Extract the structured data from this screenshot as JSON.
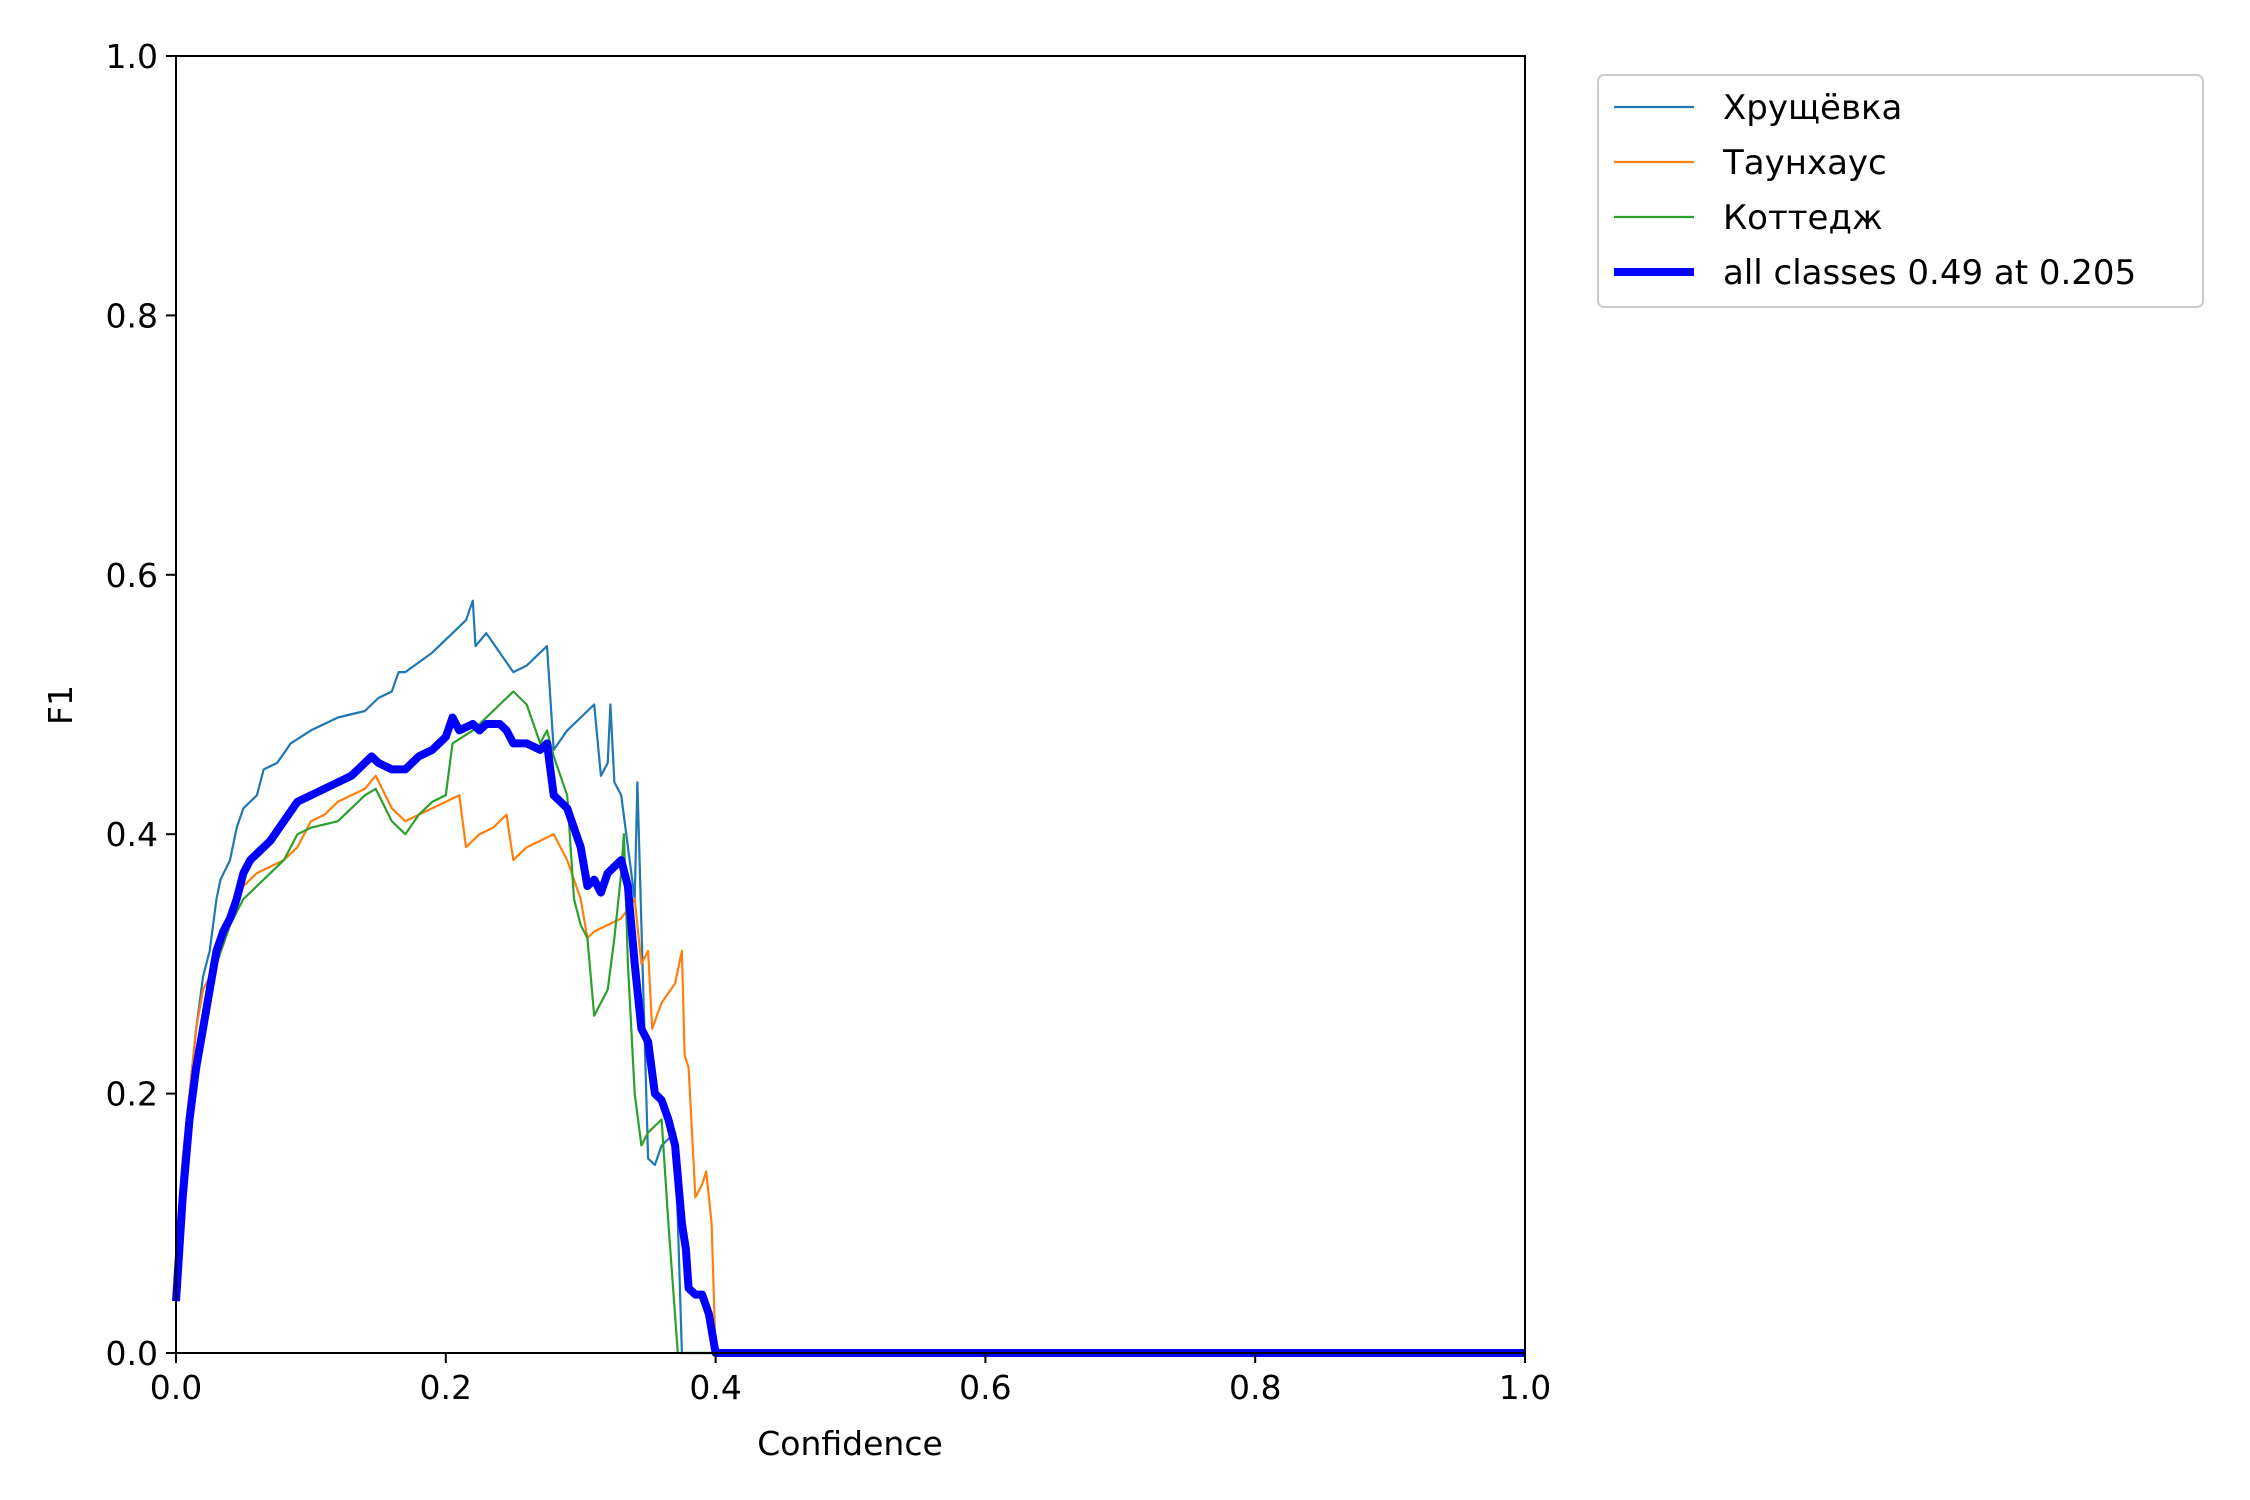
{
  "chart_data": {
    "type": "line",
    "title": "",
    "xlabel": "Confidence",
    "ylabel": "F1",
    "xlim": [
      0.0,
      1.0
    ],
    "ylim": [
      0.0,
      1.0
    ],
    "xticks": [
      "0.0",
      "0.2",
      "0.4",
      "0.6",
      "0.8",
      "1.0"
    ],
    "yticks": [
      "0.0",
      "0.2",
      "0.4",
      "0.6",
      "0.8",
      "1.0"
    ],
    "grid": false,
    "legend_position": "outside-top-right",
    "series": [
      {
        "name": "Хрущёвка",
        "color": "#1f77b4",
        "points": [
          [
            0.0,
            0.08
          ],
          [
            0.005,
            0.15
          ],
          [
            0.01,
            0.2
          ],
          [
            0.015,
            0.25
          ],
          [
            0.02,
            0.29
          ],
          [
            0.025,
            0.31
          ],
          [
            0.03,
            0.35
          ],
          [
            0.033,
            0.365
          ],
          [
            0.04,
            0.38
          ],
          [
            0.045,
            0.405
          ],
          [
            0.05,
            0.42
          ],
          [
            0.06,
            0.43
          ],
          [
            0.065,
            0.45
          ],
          [
            0.075,
            0.455
          ],
          [
            0.085,
            0.47
          ],
          [
            0.1,
            0.48
          ],
          [
            0.12,
            0.49
          ],
          [
            0.14,
            0.495
          ],
          [
            0.15,
            0.505
          ],
          [
            0.16,
            0.51
          ],
          [
            0.165,
            0.525
          ],
          [
            0.17,
            0.525
          ],
          [
            0.19,
            0.54
          ],
          [
            0.2,
            0.55
          ],
          [
            0.215,
            0.565
          ],
          [
            0.22,
            0.58
          ],
          [
            0.222,
            0.545
          ],
          [
            0.23,
            0.555
          ],
          [
            0.25,
            0.525
          ],
          [
            0.26,
            0.53
          ],
          [
            0.275,
            0.545
          ],
          [
            0.28,
            0.465
          ],
          [
            0.29,
            0.48
          ],
          [
            0.3,
            0.49
          ],
          [
            0.31,
            0.5
          ],
          [
            0.315,
            0.445
          ],
          [
            0.32,
            0.455
          ],
          [
            0.322,
            0.5
          ],
          [
            0.325,
            0.44
          ],
          [
            0.33,
            0.43
          ],
          [
            0.34,
            0.35
          ],
          [
            0.342,
            0.44
          ],
          [
            0.345,
            0.33
          ],
          [
            0.35,
            0.15
          ],
          [
            0.355,
            0.145
          ],
          [
            0.36,
            0.16
          ],
          [
            0.365,
            0.165
          ],
          [
            0.37,
            0.17
          ],
          [
            0.375,
            0.0
          ],
          [
            1.0,
            0.0
          ]
        ]
      },
      {
        "name": "Таунхаус",
        "color": "#ff7f0e",
        "points": [
          [
            0.0,
            0.05
          ],
          [
            0.005,
            0.15
          ],
          [
            0.01,
            0.2
          ],
          [
            0.015,
            0.25
          ],
          [
            0.02,
            0.28
          ],
          [
            0.03,
            0.3
          ],
          [
            0.04,
            0.33
          ],
          [
            0.05,
            0.36
          ],
          [
            0.06,
            0.37
          ],
          [
            0.08,
            0.38
          ],
          [
            0.09,
            0.39
          ],
          [
            0.1,
            0.41
          ],
          [
            0.11,
            0.415
          ],
          [
            0.12,
            0.425
          ],
          [
            0.14,
            0.435
          ],
          [
            0.148,
            0.445
          ],
          [
            0.16,
            0.42
          ],
          [
            0.17,
            0.41
          ],
          [
            0.19,
            0.42
          ],
          [
            0.2,
            0.425
          ],
          [
            0.21,
            0.43
          ],
          [
            0.215,
            0.39
          ],
          [
            0.225,
            0.4
          ],
          [
            0.235,
            0.405
          ],
          [
            0.245,
            0.415
          ],
          [
            0.25,
            0.38
          ],
          [
            0.26,
            0.39
          ],
          [
            0.27,
            0.395
          ],
          [
            0.28,
            0.4
          ],
          [
            0.29,
            0.38
          ],
          [
            0.3,
            0.35
          ],
          [
            0.305,
            0.32
          ],
          [
            0.31,
            0.325
          ],
          [
            0.32,
            0.33
          ],
          [
            0.33,
            0.335
          ],
          [
            0.34,
            0.35
          ],
          [
            0.345,
            0.3
          ],
          [
            0.35,
            0.31
          ],
          [
            0.353,
            0.25
          ],
          [
            0.36,
            0.27
          ],
          [
            0.37,
            0.285
          ],
          [
            0.375,
            0.31
          ],
          [
            0.377,
            0.23
          ],
          [
            0.38,
            0.22
          ],
          [
            0.385,
            0.12
          ],
          [
            0.39,
            0.13
          ],
          [
            0.393,
            0.14
          ],
          [
            0.397,
            0.1
          ],
          [
            0.4,
            0.0
          ],
          [
            1.0,
            0.0
          ]
        ]
      },
      {
        "name": "Коттедж",
        "color": "#2ca02c",
        "points": [
          [
            0.0,
            0.05
          ],
          [
            0.005,
            0.14
          ],
          [
            0.01,
            0.19
          ],
          [
            0.015,
            0.22
          ],
          [
            0.02,
            0.26
          ],
          [
            0.025,
            0.28
          ],
          [
            0.03,
            0.3
          ],
          [
            0.04,
            0.33
          ],
          [
            0.05,
            0.35
          ],
          [
            0.06,
            0.36
          ],
          [
            0.07,
            0.37
          ],
          [
            0.08,
            0.38
          ],
          [
            0.09,
            0.4
          ],
          [
            0.1,
            0.405
          ],
          [
            0.12,
            0.41
          ],
          [
            0.14,
            0.43
          ],
          [
            0.148,
            0.435
          ],
          [
            0.16,
            0.41
          ],
          [
            0.17,
            0.4
          ],
          [
            0.18,
            0.415
          ],
          [
            0.19,
            0.425
          ],
          [
            0.2,
            0.43
          ],
          [
            0.205,
            0.47
          ],
          [
            0.22,
            0.48
          ],
          [
            0.24,
            0.5
          ],
          [
            0.25,
            0.51
          ],
          [
            0.26,
            0.5
          ],
          [
            0.27,
            0.47
          ],
          [
            0.275,
            0.48
          ],
          [
            0.28,
            0.46
          ],
          [
            0.29,
            0.43
          ],
          [
            0.295,
            0.35
          ],
          [
            0.3,
            0.33
          ],
          [
            0.305,
            0.32
          ],
          [
            0.31,
            0.26
          ],
          [
            0.315,
            0.27
          ],
          [
            0.32,
            0.28
          ],
          [
            0.325,
            0.32
          ],
          [
            0.33,
            0.37
          ],
          [
            0.332,
            0.4
          ],
          [
            0.335,
            0.3
          ],
          [
            0.34,
            0.2
          ],
          [
            0.345,
            0.16
          ],
          [
            0.35,
            0.17
          ],
          [
            0.36,
            0.18
          ],
          [
            0.365,
            0.1
          ],
          [
            0.372,
            0.0
          ],
          [
            1.0,
            0.0
          ]
        ]
      },
      {
        "name": "all classes 0.49 at 0.205",
        "color": "#0000ff",
        "bold": true,
        "points": [
          [
            0.0,
            0.04
          ],
          [
            0.005,
            0.12
          ],
          [
            0.01,
            0.18
          ],
          [
            0.015,
            0.22
          ],
          [
            0.02,
            0.25
          ],
          [
            0.025,
            0.28
          ],
          [
            0.03,
            0.31
          ],
          [
            0.035,
            0.325
          ],
          [
            0.04,
            0.335
          ],
          [
            0.045,
            0.35
          ],
          [
            0.05,
            0.37
          ],
          [
            0.055,
            0.38
          ],
          [
            0.06,
            0.385
          ],
          [
            0.07,
            0.395
          ],
          [
            0.08,
            0.41
          ],
          [
            0.09,
            0.425
          ],
          [
            0.1,
            0.43
          ],
          [
            0.11,
            0.435
          ],
          [
            0.12,
            0.44
          ],
          [
            0.13,
            0.445
          ],
          [
            0.14,
            0.455
          ],
          [
            0.145,
            0.46
          ],
          [
            0.15,
            0.455
          ],
          [
            0.16,
            0.45
          ],
          [
            0.17,
            0.45
          ],
          [
            0.18,
            0.46
          ],
          [
            0.19,
            0.465
          ],
          [
            0.2,
            0.475
          ],
          [
            0.205,
            0.49
          ],
          [
            0.21,
            0.48
          ],
          [
            0.22,
            0.485
          ],
          [
            0.225,
            0.48
          ],
          [
            0.23,
            0.485
          ],
          [
            0.24,
            0.485
          ],
          [
            0.245,
            0.48
          ],
          [
            0.25,
            0.47
          ],
          [
            0.26,
            0.47
          ],
          [
            0.27,
            0.465
          ],
          [
            0.275,
            0.47
          ],
          [
            0.28,
            0.43
          ],
          [
            0.29,
            0.42
          ],
          [
            0.3,
            0.39
          ],
          [
            0.305,
            0.36
          ],
          [
            0.31,
            0.365
          ],
          [
            0.315,
            0.355
          ],
          [
            0.32,
            0.37
          ],
          [
            0.325,
            0.375
          ],
          [
            0.33,
            0.38
          ],
          [
            0.335,
            0.36
          ],
          [
            0.34,
            0.3
          ],
          [
            0.345,
            0.25
          ],
          [
            0.35,
            0.24
          ],
          [
            0.355,
            0.2
          ],
          [
            0.36,
            0.195
          ],
          [
            0.365,
            0.18
          ],
          [
            0.37,
            0.16
          ],
          [
            0.375,
            0.1
          ],
          [
            0.378,
            0.08
          ],
          [
            0.38,
            0.05
          ],
          [
            0.385,
            0.045
          ],
          [
            0.39,
            0.045
          ],
          [
            0.395,
            0.03
          ],
          [
            0.4,
            0.0
          ],
          [
            1.0,
            0.0
          ]
        ]
      }
    ]
  }
}
